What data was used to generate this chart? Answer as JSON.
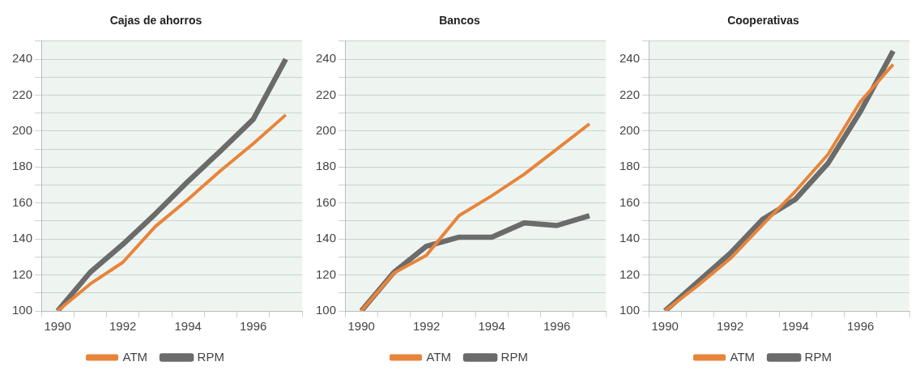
{
  "chart_data": [
    {
      "type": "line",
      "title": "Cajas de ahorros",
      "categories": [
        "1990",
        null,
        "1992",
        null,
        "1994",
        null,
        "1996",
        null
      ],
      "series": [
        {
          "name": "ATM",
          "color": "#e8843a",
          "values": [
            100,
            115,
            127,
            147,
            162,
            178,
            193,
            209
          ]
        },
        {
          "name": "RPM",
          "color": "#6b6b6b",
          "values": [
            100,
            121.5,
            137,
            154,
            172,
            189,
            206.5,
            240
          ]
        }
      ],
      "ylim": [
        100,
        250
      ],
      "yticks": [
        100,
        {
          "value": 110,
          "label": null
        },
        120,
        {
          "value": 130,
          "label": null
        },
        140,
        {
          "value": 150,
          "label": null
        },
        160,
        {
          "value": 170,
          "label": null
        },
        180,
        {
          "value": 190,
          "label": null
        },
        200,
        {
          "value": 210,
          "label": null
        },
        220,
        {
          "value": 230,
          "label": null
        },
        240,
        {
          "value": 250,
          "label": null
        }
      ],
      "grid": "y",
      "legend": "bottom",
      "marker": "none",
      "line_style": "solid"
    },
    {
      "type": "line",
      "title": "Bancos",
      "categories": [
        "1990",
        null,
        "1992",
        null,
        "1994",
        null,
        "1996",
        null
      ],
      "series": [
        {
          "name": "ATM",
          "color": "#e8843a",
          "values": [
            100,
            121,
            131,
            153,
            164,
            176,
            190,
            204
          ]
        },
        {
          "name": "RPM",
          "color": "#6b6b6b",
          "values": [
            100,
            121.5,
            136,
            141,
            141,
            149,
            147.5,
            153
          ]
        }
      ],
      "ylim": [
        100,
        250
      ],
      "yticks": [
        100,
        {
          "value": 110,
          "label": null
        },
        120,
        {
          "value": 130,
          "label": null
        },
        140,
        {
          "value": 150,
          "label": null
        },
        160,
        {
          "value": 170,
          "label": null
        },
        180,
        {
          "value": 190,
          "label": null
        },
        200,
        {
          "value": 210,
          "label": null
        },
        220,
        {
          "value": 230,
          "label": null
        },
        240,
        {
          "value": 250,
          "label": null
        }
      ],
      "grid": "y",
      "legend": "bottom",
      "marker": "none",
      "line_style": "solid"
    },
    {
      "type": "line",
      "title": "Cooperativas",
      "categories": [
        "1990",
        null,
        "1992",
        null,
        "1994",
        null,
        "1996",
        null
      ],
      "series": [
        {
          "name": "ATM",
          "color": "#e8843a",
          "values": [
            100,
            114,
            129,
            148,
            166.5,
            187,
            216.5,
            237
          ]
        },
        {
          "name": "RPM",
          "color": "#6b6b6b",
          "values": [
            100,
            116,
            132,
            151,
            162,
            182,
            211,
            244.5
          ]
        }
      ],
      "ylim": [
        100,
        250
      ],
      "yticks": [
        100,
        {
          "value": 110,
          "label": null
        },
        120,
        {
          "value": 130,
          "label": null
        },
        140,
        {
          "value": 150,
          "label": null
        },
        160,
        {
          "value": 170,
          "label": null
        },
        180,
        {
          "value": 190,
          "label": null
        },
        200,
        {
          "value": 210,
          "label": null
        },
        220,
        {
          "value": 230,
          "label": null
        },
        240,
        {
          "value": 250,
          "label": null
        }
      ],
      "grid": "y",
      "legend": "bottom",
      "marker": "none",
      "line_style": "solid"
    }
  ]
}
